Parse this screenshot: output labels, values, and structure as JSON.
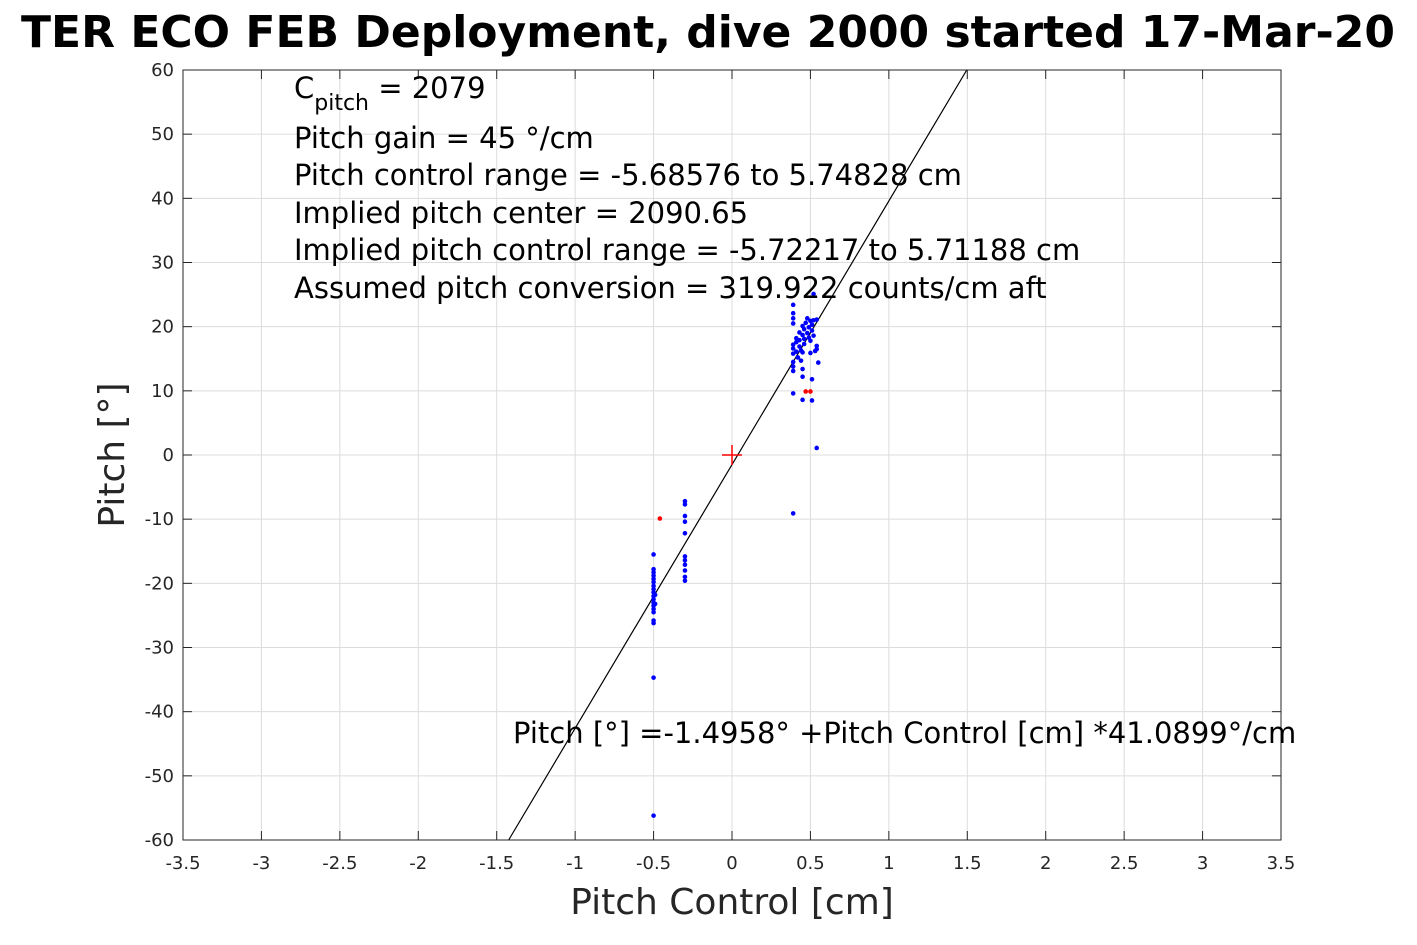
{
  "chart_data": {
    "type": "scatter",
    "title": "TER ECO FEB Deployment, dive 2000 started 17-Mar-20",
    "xlabel": "Pitch Control [cm]",
    "ylabel": "Pitch [°]",
    "xlim": [
      -3.5,
      3.5
    ],
    "ylim": [
      -60,
      60
    ],
    "xticks": [
      -3.5,
      -3,
      -2.5,
      -2,
      -1.5,
      -1,
      -0.5,
      0,
      0.5,
      1,
      1.5,
      2,
      2.5,
      3,
      3.5
    ],
    "xtick_labels": [
      "-3.5",
      "-3",
      "-2.5",
      "-2",
      "-1.5",
      "-1",
      "-0.5",
      "0",
      "0.5",
      "1",
      "1.5",
      "2",
      "2.5",
      "3",
      "3.5"
    ],
    "yticks": [
      -60,
      -50,
      -40,
      -30,
      -20,
      -10,
      0,
      10,
      20,
      30,
      40,
      50,
      60
    ],
    "ytick_labels": [
      "-60",
      "-50",
      "-40",
      "-30",
      "-20",
      "-10",
      "0",
      "10",
      "20",
      "30",
      "40",
      "50",
      "60"
    ],
    "grid": true,
    "annotations": {
      "c_pitch_main": "C",
      "c_pitch_sub": "pitch",
      "c_pitch_value": " = 2079",
      "lines": [
        "Pitch gain = 45 °/cm",
        "Pitch control range = -5.68576 to 5.74828 cm",
        "Implied pitch center = 2090.65",
        "Implied pitch control range = -5.72217 to 5.71188 cm",
        "Assumed pitch conversion = 319.922 counts/cm aft"
      ],
      "fit_equation": "Pitch [°] =-1.4958° +Pitch Control [cm] *41.0899°/cm"
    },
    "fit_line": {
      "intercept": -1.4958,
      "slope": 41.0899,
      "color": "#000000"
    },
    "center_marker": {
      "x": 0,
      "y": 0,
      "color": "#ff0000"
    },
    "series": [
      {
        "color": "#0000ff",
        "points": [
          [
            -0.5,
            -15.5
          ],
          [
            -0.5,
            -17.8
          ],
          [
            -0.5,
            -18.3
          ],
          [
            -0.5,
            -18.8
          ],
          [
            -0.5,
            -19.3
          ],
          [
            -0.5,
            -19.8
          ],
          [
            -0.5,
            -20.4
          ],
          [
            -0.5,
            -20.9
          ],
          [
            -0.5,
            -21.4
          ],
          [
            -0.5,
            -22.0
          ],
          [
            -0.5,
            -22.5
          ],
          [
            -0.5,
            -23.0
          ],
          [
            -0.5,
            -23.5
          ],
          [
            -0.5,
            -24.0
          ],
          [
            -0.5,
            -24.5
          ],
          [
            -0.5,
            -25.8
          ],
          [
            -0.5,
            -26.2
          ],
          [
            -0.5,
            -34.7
          ],
          [
            -0.5,
            -56.2
          ],
          [
            -0.49,
            -21.8
          ],
          [
            -0.49,
            -23.2
          ],
          [
            -0.3,
            -7.2
          ],
          [
            -0.3,
            -7.7
          ],
          [
            -0.3,
            -9.5
          ],
          [
            -0.3,
            -10.4
          ],
          [
            -0.3,
            -12.2
          ],
          [
            -0.3,
            -15.8
          ],
          [
            -0.3,
            -16.4
          ],
          [
            -0.3,
            -17.1
          ],
          [
            -0.3,
            -18.0
          ],
          [
            -0.3,
            -19.0
          ],
          [
            -0.3,
            -19.6
          ],
          [
            0.39,
            23.4
          ],
          [
            0.39,
            22.1
          ],
          [
            0.39,
            21.3
          ],
          [
            0.39,
            20.5
          ],
          [
            0.39,
            17.2
          ],
          [
            0.39,
            16.6
          ],
          [
            0.39,
            15.8
          ],
          [
            0.39,
            14.5
          ],
          [
            0.39,
            13.8
          ],
          [
            0.39,
            13.1
          ],
          [
            0.39,
            9.6
          ],
          [
            0.39,
            -9.1
          ],
          [
            0.41,
            18.2
          ],
          [
            0.41,
            17.6
          ],
          [
            0.41,
            16.1
          ],
          [
            0.42,
            15.2
          ],
          [
            0.43,
            19.1
          ],
          [
            0.43,
            17.9
          ],
          [
            0.43,
            16.9
          ],
          [
            0.44,
            16.3
          ],
          [
            0.44,
            14.7
          ],
          [
            0.45,
            20.1
          ],
          [
            0.45,
            18.7
          ],
          [
            0.45,
            16.0
          ],
          [
            0.45,
            13.4
          ],
          [
            0.45,
            12.2
          ],
          [
            0.45,
            8.6
          ],
          [
            0.46,
            19.6
          ],
          [
            0.46,
            18.1
          ],
          [
            0.46,
            17.3
          ],
          [
            0.47,
            20.6
          ],
          [
            0.48,
            21.3
          ],
          [
            0.48,
            19.0
          ],
          [
            0.49,
            19.9
          ],
          [
            0.49,
            18.3
          ],
          [
            0.5,
            20.9
          ],
          [
            0.5,
            17.8
          ],
          [
            0.5,
            15.9
          ],
          [
            0.51,
            20.3
          ],
          [
            0.51,
            19.4
          ],
          [
            0.51,
            11.8
          ],
          [
            0.51,
            8.5
          ],
          [
            0.52,
            25.1
          ],
          [
            0.52,
            21.0
          ],
          [
            0.52,
            18.6
          ],
          [
            0.53,
            16.2
          ],
          [
            0.54,
            21.1
          ],
          [
            0.54,
            17.0
          ],
          [
            0.54,
            16.5
          ],
          [
            0.55,
            14.4
          ],
          [
            0.54,
            1.1
          ]
        ]
      },
      {
        "color": "#ff0000",
        "points": [
          [
            -0.46,
            -9.9
          ],
          [
            0.47,
            9.9
          ],
          [
            0.5,
            9.9
          ]
        ]
      }
    ]
  }
}
